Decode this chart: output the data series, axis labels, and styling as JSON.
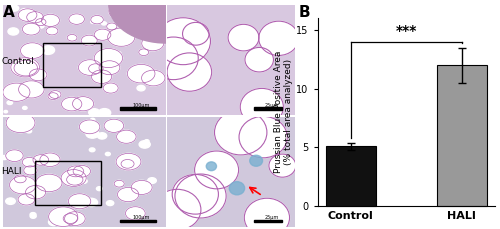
{
  "categories": [
    "Control",
    "HALI"
  ],
  "values": [
    5.1,
    12.0
  ],
  "errors": [
    0.3,
    1.5
  ],
  "bar_colors": [
    "#111111",
    "#999999"
  ],
  "bar_width": 0.45,
  "ylim": [
    0,
    16
  ],
  "yticks": [
    0,
    5,
    10,
    15
  ],
  "ylabel": "Prussian Blue Positive Area\n(% total area analyzed)",
  "ylabel_fontsize": 6.5,
  "tick_fontsize": 7,
  "xlabel_fontsize": 8,
  "sig_label": "***",
  "sig_fontsize": 10,
  "panel_label_A": "A",
  "panel_label_B": "B",
  "panel_fontsize": 11,
  "background_color": "#ffffff",
  "error_capsize": 3,
  "error_linewidth": 1.0,
  "bar_edge_color": "#000000",
  "label_control": "Control",
  "label_hali": "HALI",
  "tissue_bg_color": "#e8d0e8",
  "alveoli_color": "#ffffff",
  "wall_color": "#c070c0",
  "hali_blue_color": "#a0c8e0"
}
